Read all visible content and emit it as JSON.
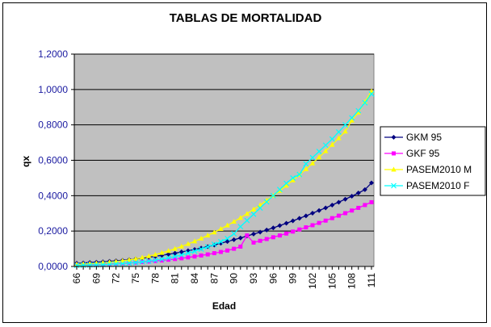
{
  "chart_data": {
    "type": "line",
    "title": "TABLAS DE MORTALIDAD",
    "xlabel": "Edad",
    "ylabel": "qx",
    "x_ticks": [
      "66",
      "69",
      "72",
      "75",
      "78",
      "81",
      "84",
      "87",
      "90",
      "93",
      "96",
      "99",
      "102",
      "105",
      "108",
      "111"
    ],
    "y_ticks": [
      "0,0000",
      "0,2000",
      "0,4000",
      "0,6000",
      "0,8000",
      "1,0000",
      "1,2000"
    ],
    "xlim": [
      66,
      111
    ],
    "ylim": [
      0,
      1.2
    ],
    "grid": true,
    "legend_position": "right",
    "colors": {
      "plot_background": "#c0c0c0",
      "gridline": "#000000"
    },
    "series": [
      {
        "name": "GKM 95",
        "color": "#000080",
        "marker": "diamond",
        "x": [
          66,
          67,
          68,
          69,
          70,
          71,
          72,
          73,
          74,
          75,
          76,
          77,
          78,
          79,
          80,
          81,
          82,
          83,
          84,
          85,
          86,
          87,
          88,
          89,
          90,
          91,
          92,
          93,
          94,
          95,
          96,
          97,
          98,
          99,
          100,
          101,
          102,
          103,
          104,
          105,
          106,
          107,
          108,
          109,
          110,
          111
        ],
        "values": [
          0.018,
          0.02,
          0.022,
          0.024,
          0.026,
          0.029,
          0.032,
          0.035,
          0.039,
          0.043,
          0.047,
          0.052,
          0.057,
          0.063,
          0.069,
          0.075,
          0.082,
          0.089,
          0.096,
          0.104,
          0.112,
          0.121,
          0.131,
          0.141,
          0.151,
          0.161,
          0.172,
          0.183,
          0.194,
          0.206,
          0.218,
          0.231,
          0.244,
          0.258,
          0.272,
          0.286,
          0.301,
          0.316,
          0.331,
          0.347,
          0.363,
          0.38,
          0.397,
          0.415,
          0.434,
          0.472
        ]
      },
      {
        "name": "GKF 95",
        "color": "#ff00ff",
        "marker": "square",
        "x": [
          66,
          67,
          68,
          69,
          70,
          71,
          72,
          73,
          74,
          75,
          76,
          77,
          78,
          79,
          80,
          81,
          82,
          83,
          84,
          85,
          86,
          87,
          88,
          89,
          90,
          91,
          92,
          93,
          94,
          95,
          96,
          97,
          98,
          99,
          100,
          101,
          102,
          103,
          104,
          105,
          106,
          107,
          108,
          109,
          110,
          111
        ],
        "values": [
          0.008,
          0.009,
          0.01,
          0.011,
          0.012,
          0.014,
          0.016,
          0.018,
          0.02,
          0.022,
          0.025,
          0.028,
          0.031,
          0.034,
          0.038,
          0.042,
          0.046,
          0.051,
          0.056,
          0.062,
          0.068,
          0.075,
          0.082,
          0.09,
          0.1,
          0.112,
          0.175,
          0.135,
          0.145,
          0.155,
          0.165,
          0.175,
          0.186,
          0.197,
          0.209,
          0.221,
          0.233,
          0.246,
          0.259,
          0.273,
          0.287,
          0.301,
          0.316,
          0.331,
          0.347,
          0.363
        ]
      },
      {
        "name": "PASEM2010 M",
        "color": "#ffff00",
        "marker": "triangle",
        "x": [
          66,
          67,
          68,
          69,
          70,
          71,
          72,
          73,
          74,
          75,
          76,
          77,
          78,
          79,
          80,
          81,
          82,
          83,
          84,
          85,
          86,
          87,
          88,
          89,
          90,
          91,
          92,
          93,
          94,
          95,
          96,
          97,
          98,
          99,
          100,
          101,
          102,
          103,
          104,
          105,
          106,
          107,
          108,
          109,
          110,
          111
        ],
        "values": [
          0.012,
          0.014,
          0.016,
          0.018,
          0.021,
          0.024,
          0.028,
          0.032,
          0.037,
          0.043,
          0.05,
          0.058,
          0.067,
          0.077,
          0.088,
          0.1,
          0.113,
          0.127,
          0.142,
          0.158,
          0.175,
          0.193,
          0.212,
          0.232,
          0.253,
          0.275,
          0.298,
          0.322,
          0.347,
          0.373,
          0.4,
          0.428,
          0.457,
          0.487,
          0.518,
          0.55,
          0.583,
          0.617,
          0.652,
          0.688,
          0.725,
          0.763,
          0.825,
          0.87,
          0.93,
          0.99
        ]
      },
      {
        "name": "PASEM2010 F",
        "color": "#00ffff",
        "marker": "x",
        "x": [
          66,
          67,
          68,
          69,
          70,
          71,
          72,
          73,
          74,
          75,
          76,
          77,
          78,
          79,
          80,
          81,
          82,
          83,
          84,
          85,
          86,
          87,
          88,
          89,
          90,
          91,
          92,
          93,
          94,
          95,
          96,
          97,
          98,
          99,
          100,
          101,
          102,
          103,
          104,
          105,
          106,
          107,
          108,
          109,
          110,
          111
        ],
        "values": [
          0.006,
          0.007,
          0.008,
          0.009,
          0.01,
          0.012,
          0.014,
          0.016,
          0.019,
          0.022,
          0.026,
          0.03,
          0.035,
          0.041,
          0.048,
          0.056,
          0.065,
          0.075,
          0.086,
          0.098,
          0.111,
          0.125,
          0.14,
          0.158,
          0.185,
          0.225,
          0.26,
          0.295,
          0.33,
          0.365,
          0.4,
          0.435,
          0.47,
          0.5,
          0.52,
          0.58,
          0.615,
          0.65,
          0.685,
          0.72,
          0.76,
          0.8,
          0.84,
          0.88,
          0.925,
          0.975
        ]
      }
    ]
  }
}
